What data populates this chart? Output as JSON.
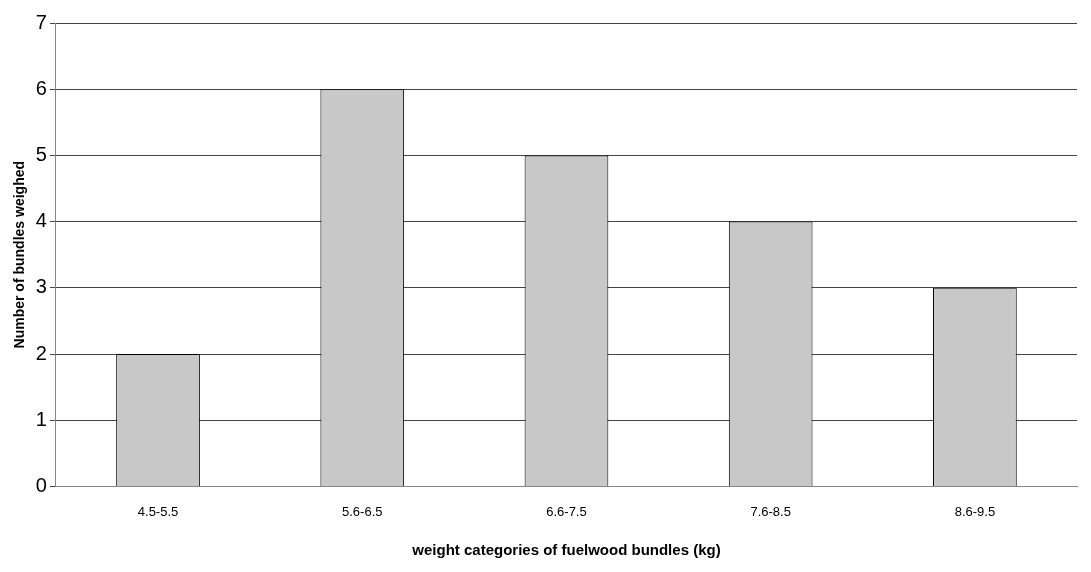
{
  "chart_data": {
    "type": "bar",
    "xlabel": "weight categories of fuelwood bundles (kg)",
    "ylabel": "Number of bundles weighed",
    "categories": [
      "4.5-5.5",
      "5.6-6.5",
      "6.6-7.5",
      "7.6-8.5",
      "8.6-9.5"
    ],
    "values": [
      2,
      6,
      5,
      4,
      3
    ],
    "color": "#c8c8c8",
    "ylim": [
      0,
      7
    ],
    "yticks": [
      0,
      1,
      2,
      3,
      4,
      5,
      6,
      7
    ],
    "grid": "y"
  }
}
